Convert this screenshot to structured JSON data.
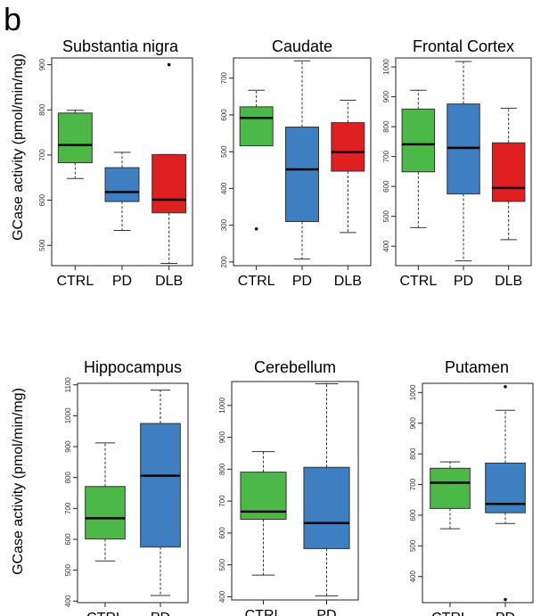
{
  "figure_label": "b",
  "y_axis_label": "GCase activity (pmol/min/mg)",
  "colors": {
    "CTRL": "#4cb848",
    "PD": "#3d7fc1",
    "DLB": "#e02020"
  },
  "chart_data": [
    {
      "type": "box",
      "title": "Substantia nigra",
      "ylabel": "GCase activity (pmol/min/mg)",
      "ylim": [
        455,
        915
      ],
      "yticks": [
        500,
        600,
        700,
        800,
        900
      ],
      "categories": [
        "CTRL",
        "PD",
        "DLB"
      ],
      "boxes": [
        {
          "name": "CTRL",
          "whisker_low": 648,
          "q1": 683,
          "median": 722,
          "q3": 793,
          "whisker_high": 799,
          "outliers": []
        },
        {
          "name": "PD",
          "whisker_low": 533,
          "q1": 597,
          "median": 618,
          "q3": 672,
          "whisker_high": 706,
          "outliers": []
        },
        {
          "name": "DLB",
          "whisker_low": 460,
          "q1": 572,
          "median": 601,
          "q3": 701,
          "whisker_high": 701,
          "outliers": [
            900
          ]
        }
      ]
    },
    {
      "type": "box",
      "title": "Caudate",
      "ylim": [
        190,
        755
      ],
      "yticks": [
        200,
        300,
        400,
        500,
        600,
        700
      ],
      "categories": [
        "CTRL",
        "PD",
        "DLB"
      ],
      "boxes": [
        {
          "name": "CTRL",
          "whisker_low": 516,
          "q1": 516,
          "median": 592,
          "q3": 622,
          "whisker_high": 667,
          "outliers": [
            290
          ]
        },
        {
          "name": "PD",
          "whisker_low": 208,
          "q1": 310,
          "median": 452,
          "q3": 567,
          "whisker_high": 747,
          "outliers": []
        },
        {
          "name": "DLB",
          "whisker_low": 280,
          "q1": 447,
          "median": 499,
          "q3": 579,
          "whisker_high": 640,
          "outliers": []
        }
      ]
    },
    {
      "type": "box",
      "title": "Frontal Cortex",
      "ylim": [
        335,
        1030
      ],
      "yticks": [
        400,
        500,
        600,
        700,
        800,
        900,
        1000
      ],
      "categories": [
        "CTRL",
        "PD",
        "DLB"
      ],
      "boxes": [
        {
          "name": "CTRL",
          "whisker_low": 462,
          "q1": 649,
          "median": 741,
          "q3": 859,
          "whisker_high": 922,
          "outliers": []
        },
        {
          "name": "PD",
          "whisker_low": 351,
          "q1": 575,
          "median": 729,
          "q3": 876,
          "whisker_high": 1018,
          "outliers": []
        },
        {
          "name": "DLB",
          "whisker_low": 422,
          "q1": 550,
          "median": 595,
          "q3": 746,
          "whisker_high": 862,
          "outliers": []
        }
      ]
    },
    {
      "type": "box",
      "title": "Hippocampus",
      "ylabel": "GCase activity (pmol/min/mg)",
      "ylim": [
        395,
        1105
      ],
      "yticks": [
        400,
        500,
        600,
        700,
        800,
        900,
        1000,
        1100
      ],
      "categories": [
        "CTRL",
        "PD"
      ],
      "boxes": [
        {
          "name": "CTRL",
          "whisker_low": 530,
          "q1": 601,
          "median": 668,
          "q3": 771,
          "whisker_high": 912,
          "outliers": []
        },
        {
          "name": "PD",
          "whisker_low": 418,
          "q1": 575,
          "median": 806,
          "q3": 975,
          "whisker_high": 1083,
          "outliers": []
        }
      ]
    },
    {
      "type": "box",
      "title": "Cerebellum",
      "ylim": [
        390,
        1075
      ],
      "yticks": [
        400,
        500,
        600,
        700,
        800,
        900,
        1000
      ],
      "categories": [
        "CTRL",
        "PD"
      ],
      "boxes": [
        {
          "name": "CTRL",
          "whisker_low": 468,
          "q1": 643,
          "median": 667,
          "q3": 791,
          "whisker_high": 855,
          "outliers": []
        },
        {
          "name": "PD",
          "whisker_low": 403,
          "q1": 551,
          "median": 631,
          "q3": 806,
          "whisker_high": 1068,
          "outliers": []
        }
      ]
    },
    {
      "type": "box",
      "title": "Putamen",
      "ylim": [
        315,
        1030
      ],
      "yticks": [
        400,
        500,
        600,
        700,
        800,
        900,
        1000
      ],
      "categories": [
        "CTRL",
        "PD"
      ],
      "boxes": [
        {
          "name": "CTRL",
          "whisker_low": 556,
          "q1": 622,
          "median": 706,
          "q3": 753,
          "whisker_high": 774,
          "outliers": []
        },
        {
          "name": "PD",
          "whisker_low": 573,
          "q1": 608,
          "median": 637,
          "q3": 770,
          "whisker_high": 942,
          "outliers": [
            1019,
            325
          ]
        }
      ]
    }
  ]
}
